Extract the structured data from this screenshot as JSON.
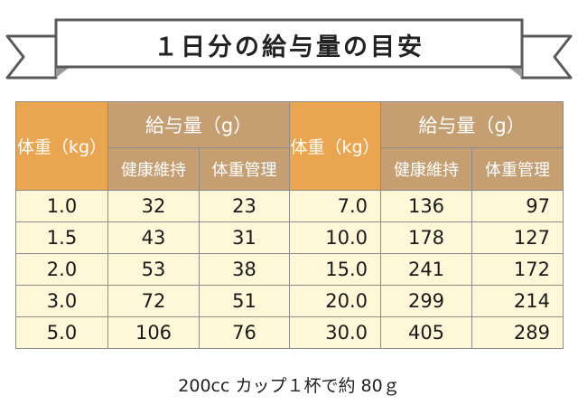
{
  "title": "１日分の給与量の目安",
  "table": {
    "weight_header": "体重（kg）",
    "amount_header": "給与量（g）",
    "sub_headers": [
      "健康維持",
      "体重管理"
    ],
    "rows_left": [
      [
        "1.0",
        "32",
        "23"
      ],
      [
        "1.5",
        "43",
        "31"
      ],
      [
        "2.0",
        "53",
        "38"
      ],
      [
        "3.0",
        "72",
        "51"
      ],
      [
        "5.0",
        "106",
        "76"
      ]
    ],
    "rows_right": [
      [
        "7.0",
        "136",
        "97"
      ],
      [
        "10.0",
        "178",
        "127"
      ],
      [
        "15.0",
        "241",
        "172"
      ],
      [
        "20.0",
        "299",
        "214"
      ],
      [
        "30.0",
        "405",
        "289"
      ]
    ]
  },
  "caption": "200cc カップ１杯で約 80ｇ",
  "colors": {
    "weight_header_bg": "#e9a54f",
    "amount_header_bg": "#c59e72",
    "cell_bg": "#fef8d8",
    "border": "#8c8c8c"
  }
}
